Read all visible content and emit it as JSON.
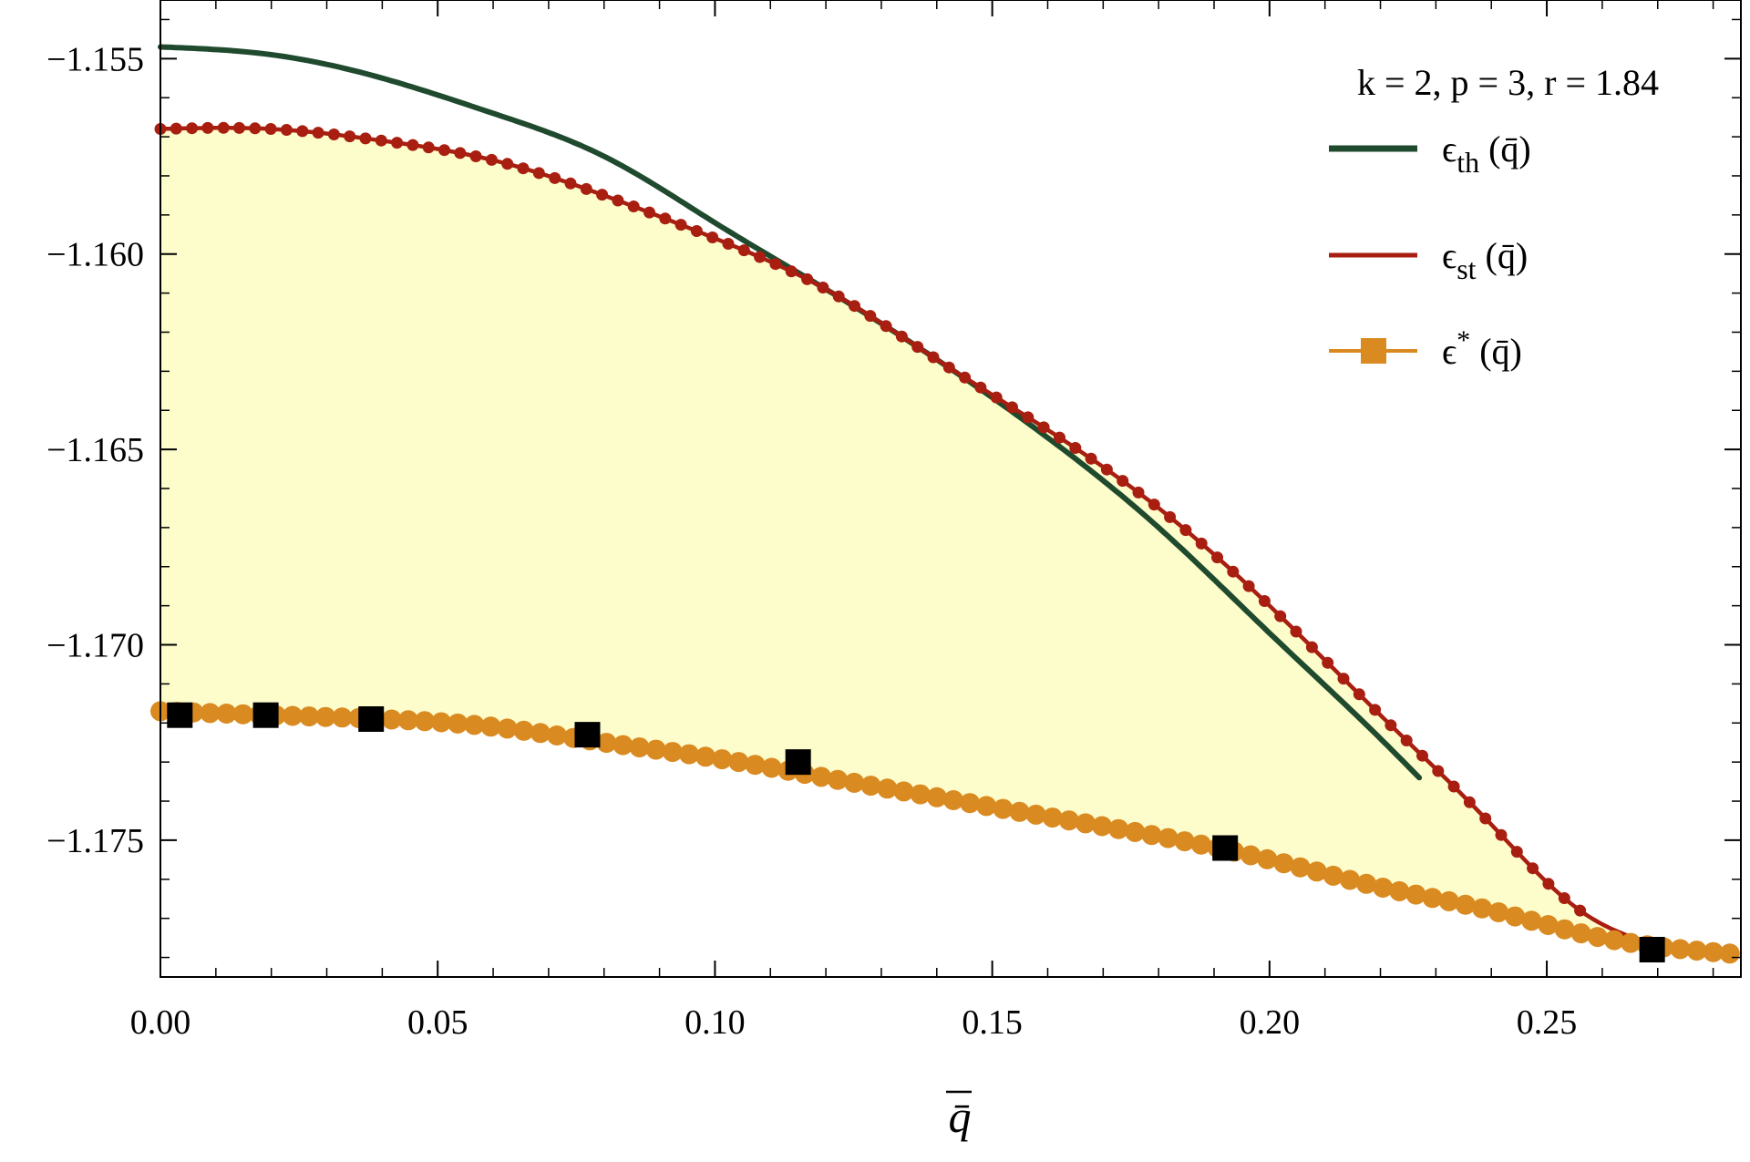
{
  "chart_data": {
    "type": "line",
    "title": "",
    "xlabel": "q̄",
    "ylabel": "",
    "xlim": [
      0.0,
      0.285
    ],
    "ylim": [
      -1.1785,
      -1.1535
    ],
    "x_ticks": [
      0.0,
      0.05,
      0.1,
      0.15,
      0.2,
      0.25
    ],
    "x_tick_labels": [
      "0.00",
      "0.05",
      "0.10",
      "0.15",
      "0.20",
      "0.25"
    ],
    "y_ticks": [
      -1.155,
      -1.16,
      -1.165,
      -1.17,
      -1.175
    ],
    "y_tick_labels": [
      "−1.155",
      "−1.160",
      "−1.165",
      "−1.170",
      "−1.175"
    ],
    "grid": false,
    "legend_position": "top-right",
    "legend_header": "k = 2, p = 3, r = 1.84",
    "legend": [
      {
        "symbol": "ϵ",
        "sub": "th",
        "sup": "",
        "arg": " (q̄)"
      },
      {
        "symbol": "ϵ",
        "sub": "st",
        "sup": "",
        "arg": " (q̄)"
      },
      {
        "symbol": "ϵ",
        "sub": "",
        "sup": "*",
        "arg": " (q̄)"
      }
    ],
    "series": [
      {
        "name": "ϵth (q̄)",
        "color": "#1f4a2e",
        "style": "line",
        "x": [
          0.0,
          0.02,
          0.04,
          0.06,
          0.08,
          0.1,
          0.12,
          0.14,
          0.16,
          0.18,
          0.2,
          0.22,
          0.227
        ],
        "y": [
          -1.1547,
          -1.1549,
          -1.1555,
          -1.1564,
          -1.1575,
          -1.1592,
          -1.1609,
          -1.1627,
          -1.1647,
          -1.167,
          -1.1697,
          -1.1724,
          -1.1734
        ]
      },
      {
        "name": "ϵst (q̄)",
        "color": "#a81e10",
        "style": "line+dots",
        "x": [
          0.0,
          0.02,
          0.04,
          0.06,
          0.08,
          0.1,
          0.12,
          0.14,
          0.16,
          0.18,
          0.2,
          0.22,
          0.24,
          0.256,
          0.273
        ],
        "y": [
          -1.1568,
          -1.1568,
          -1.1571,
          -1.1576,
          -1.1585,
          -1.1596,
          -1.1609,
          -1.1627,
          -1.1645,
          -1.1665,
          -1.169,
          -1.1718,
          -1.1746,
          -1.1768,
          -1.1778
        ]
      },
      {
        "name": "ϵ* (q̄)",
        "color": "#d98a20",
        "style": "line+dots",
        "x": [
          0.0,
          0.02,
          0.04,
          0.06,
          0.08,
          0.1,
          0.12,
          0.14,
          0.16,
          0.18,
          0.2,
          0.22,
          0.24,
          0.26,
          0.283
        ],
        "y": [
          -1.1717,
          -1.1718,
          -1.1719,
          -1.1721,
          -1.1725,
          -1.1729,
          -1.1734,
          -1.1739,
          -1.1744,
          -1.1749,
          -1.1755,
          -1.1762,
          -1.1768,
          -1.1775,
          -1.1779
        ]
      },
      {
        "name": "",
        "color": "#000000",
        "style": "square-markers",
        "x": [
          0.0035,
          0.019,
          0.038,
          0.077,
          0.115,
          0.192,
          0.269
        ],
        "y": [
          -1.1718,
          -1.1718,
          -1.1719,
          -1.1723,
          -1.173,
          -1.1752,
          -1.1778
        ]
      }
    ],
    "shaded_region": {
      "between": [
        "ϵst (q̄)",
        "ϵ* (q̄)"
      ],
      "color": "#fdfccb"
    }
  }
}
